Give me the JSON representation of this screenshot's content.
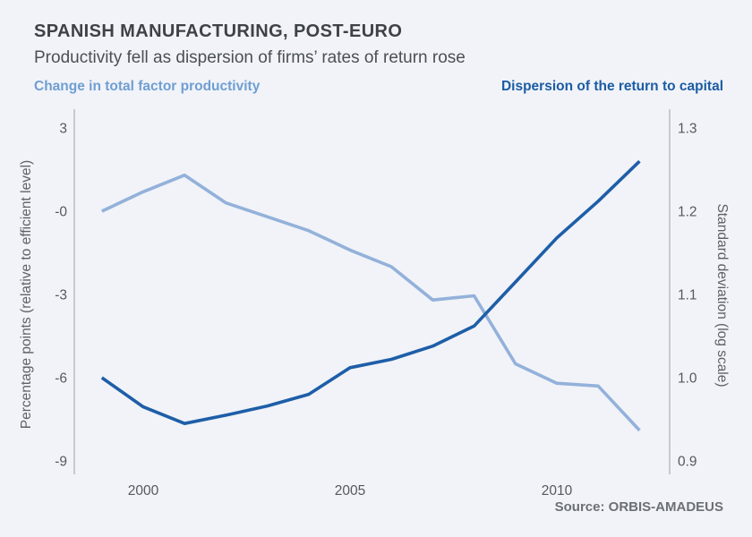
{
  "header": {
    "title": "SPANISH MANUFACTURING, POST-EURO",
    "subtitle": "Productivity fell as dispersion of firms’ rates of return rose"
  },
  "legend": {
    "left_label": "Change in total factor productivity",
    "right_label": "Dispersion of the return to capital"
  },
  "source": "Source: ORBIS-AMADEUS",
  "colors": {
    "background": "#f1f3f8",
    "tfp_line": "#93b1da",
    "dispersion_line": "#1e5ea8",
    "axis_line": "#9aa0a6",
    "tick_text": "#55595e",
    "axis_title_text": "#5d6166",
    "legend_left_text": "#6f9ed2",
    "legend_right_text": "#1b5ca3"
  },
  "chart_data": {
    "type": "line",
    "x": [
      1999,
      2000,
      2001,
      2002,
      2003,
      2004,
      2005,
      2006,
      2007,
      2008,
      2009,
      2010,
      2011,
      2012
    ],
    "series": [
      {
        "name": "Change in total factor productivity",
        "axis": "left",
        "color": "#93b1da",
        "values": [
          0.0,
          0.7,
          1.3,
          0.3,
          -0.2,
          -0.7,
          -1.4,
          -2.0,
          -3.2,
          -3.05,
          -5.5,
          -6.2,
          -6.3,
          -7.9
        ]
      },
      {
        "name": "Dispersion of the return to capital",
        "axis": "right",
        "color": "#1e5ea8",
        "values": [
          1.0,
          0.965,
          0.945,
          0.955,
          0.966,
          0.98,
          1.012,
          1.022,
          1.038,
          1.062,
          1.115,
          1.168,
          1.212,
          1.26
        ]
      }
    ],
    "left_axis": {
      "label": "Percentage points (relative to efficient level)",
      "ticks": [
        "3",
        "-0",
        "-3",
        "-6",
        "-9"
      ],
      "tick_values": [
        3,
        0,
        -3,
        -6,
        -9
      ],
      "range": [
        -9,
        3
      ]
    },
    "right_axis": {
      "label": "Standard deviation (log scale)",
      "ticks": [
        "1.3",
        "1.2",
        "1.1",
        "1.0",
        "0.9"
      ],
      "tick_values": [
        1.3,
        1.2,
        1.1,
        1.0,
        0.9
      ],
      "range": [
        0.9,
        1.3
      ]
    },
    "x_axis": {
      "ticks": [
        "2000",
        "2005",
        "2010"
      ],
      "tick_values": [
        2000,
        2005,
        2010
      ]
    },
    "grid": false,
    "legend_position": "top"
  }
}
